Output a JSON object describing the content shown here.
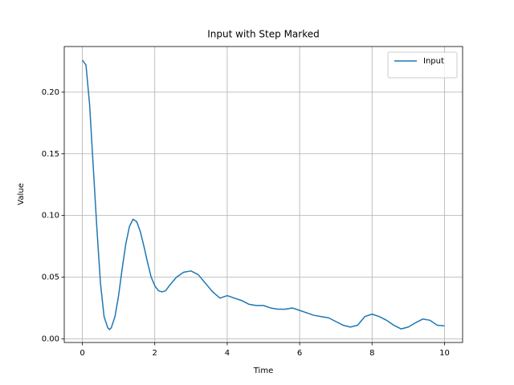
{
  "chart_data": {
    "type": "line",
    "title": "Input with Step Marked",
    "xlabel": "Time",
    "ylabel": "Value",
    "x": [
      0,
      0.1,
      0.2,
      0.3,
      0.4,
      0.5,
      0.6,
      0.7,
      0.75,
      0.8,
      0.9,
      1.0,
      1.1,
      1.2,
      1.3,
      1.4,
      1.5,
      1.6,
      1.7,
      1.8,
      1.9,
      2.0,
      2.1,
      2.2,
      2.3,
      2.4,
      2.6,
      2.8,
      3.0,
      3.2,
      3.4,
      3.6,
      3.8,
      4.0,
      4.2,
      4.4,
      4.6,
      4.8,
      5.0,
      5.2,
      5.4,
      5.6,
      5.8,
      6.0,
      6.2,
      6.4,
      6.6,
      6.8,
      7.0,
      7.2,
      7.4,
      7.6,
      7.8,
      8.0,
      8.2,
      8.4,
      8.6,
      8.8,
      9.0,
      9.2,
      9.4,
      9.6,
      9.8,
      10.0
    ],
    "series": [
      {
        "name": "Input",
        "color": "#1f77b4",
        "values": [
          0.226,
          0.222,
          0.19,
          0.14,
          0.09,
          0.045,
          0.018,
          0.009,
          0.0075,
          0.009,
          0.018,
          0.035,
          0.057,
          0.077,
          0.091,
          0.097,
          0.095,
          0.087,
          0.075,
          0.062,
          0.05,
          0.043,
          0.039,
          0.038,
          0.039,
          0.043,
          0.05,
          0.054,
          0.055,
          0.052,
          0.045,
          0.038,
          0.033,
          0.035,
          0.033,
          0.031,
          0.028,
          0.027,
          0.027,
          0.025,
          0.024,
          0.024,
          0.025,
          0.023,
          0.021,
          0.019,
          0.018,
          0.017,
          0.014,
          0.011,
          0.0095,
          0.011,
          0.018,
          0.02,
          0.018,
          0.015,
          0.011,
          0.008,
          0.0095,
          0.013,
          0.016,
          0.015,
          0.011,
          0.0105
        ]
      }
    ],
    "xlim": [
      -0.5,
      10.5
    ],
    "ylim": [
      -0.003,
      0.237
    ],
    "xticks": [
      0,
      2,
      4,
      6,
      8,
      10
    ],
    "yticks": [
      {
        "value": 0,
        "label": "0.00"
      },
      {
        "value": 0.05,
        "label": "0.05"
      },
      {
        "value": 0.1,
        "label": "0.10"
      },
      {
        "value": 0.15,
        "label": "0.15"
      },
      {
        "value": 0.2,
        "label": "0.20"
      }
    ],
    "grid": true,
    "legend": "upper right"
  }
}
